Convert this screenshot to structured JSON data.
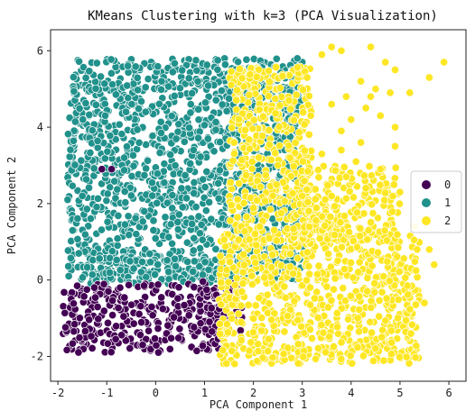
{
  "chart_data": {
    "type": "scatter",
    "title": "KMeans Clustering with k=3 (PCA Visualization)",
    "xlabel": "PCA Component 1",
    "ylabel": "PCA Component 2",
    "xlim": [
      -2.15,
      6.35
    ],
    "ylim": [
      -2.65,
      6.55
    ],
    "xticks": [
      -2,
      -1,
      0,
      1,
      2,
      3,
      4,
      5,
      6
    ],
    "yticks": [
      -2,
      0,
      2,
      4,
      6
    ],
    "grid": false,
    "legend": {
      "placement": "center-right"
    },
    "series": [
      {
        "name": "0",
        "color": "#440154",
        "regions": [
          {
            "x": [
              -1.9,
              1.3
            ],
            "y": [
              -1.9,
              -0.1
            ]
          },
          {
            "x": [
              0.9,
              1.8
            ],
            "y": [
              -1.4,
              0.0
            ]
          }
        ],
        "points": [
          [
            -1.1,
            2.9
          ],
          [
            -0.9,
            2.9
          ],
          [
            1.5,
            -0.3
          ],
          [
            1.6,
            -0.5
          ],
          [
            1.4,
            -0.9
          ],
          [
            1.7,
            -1.1
          ]
        ]
      },
      {
        "name": "1",
        "color": "#21918c",
        "regions": [
          {
            "x": [
              -1.8,
              3.0
            ],
            "y": [
              0.0,
              5.8
            ]
          },
          {
            "x": [
              -1.5,
              1.4
            ],
            "y": [
              -0.1,
              0.6
            ]
          }
        ],
        "points": [
          [
            3.0,
            5.7
          ],
          [
            2.9,
            5.8
          ],
          [
            2.8,
            5.5
          ],
          [
            -1.8,
            2.1
          ],
          [
            -1.7,
            1.3
          ]
        ]
      },
      {
        "name": "2",
        "color": "#fde725",
        "regions": [
          {
            "x": [
              1.3,
              5.4
            ],
            "y": [
              -2.2,
              1.2
            ]
          },
          {
            "x": [
              1.5,
              3.2
            ],
            "y": [
              1.0,
              5.6
            ]
          },
          {
            "x": [
              3.0,
              5.0
            ],
            "y": [
              1.0,
              3.0
            ]
          }
        ],
        "points": [
          [
            3.6,
            6.1
          ],
          [
            3.8,
            6.0
          ],
          [
            4.4,
            6.1
          ],
          [
            4.7,
            5.7
          ],
          [
            5.9,
            5.7
          ],
          [
            5.6,
            5.3
          ],
          [
            4.2,
            5.2
          ],
          [
            4.5,
            5.0
          ],
          [
            3.9,
            4.8
          ],
          [
            4.8,
            4.9
          ],
          [
            4.3,
            4.5
          ],
          [
            3.6,
            4.6
          ],
          [
            4.0,
            4.2
          ],
          [
            4.6,
            4.3
          ],
          [
            4.9,
            4.0
          ],
          [
            3.8,
            3.9
          ],
          [
            4.2,
            3.6
          ],
          [
            4.9,
            3.5
          ],
          [
            3.4,
            3.3
          ],
          [
            4.1,
            3.1
          ],
          [
            4.6,
            2.9
          ],
          [
            3.9,
            2.7
          ],
          [
            4.3,
            2.4
          ],
          [
            3.6,
            2.2
          ],
          [
            5.0,
            2.3
          ],
          [
            5.3,
            1.4
          ],
          [
            5.6,
            0.8
          ],
          [
            5.7,
            0.4
          ],
          [
            5.5,
            -0.6
          ],
          [
            3.8,
            3.4
          ],
          [
            3.1,
            5.3
          ],
          [
            3.4,
            5.9
          ],
          [
            4.9,
            5.5
          ],
          [
            5.2,
            4.9
          ],
          [
            4.4,
            4.8
          ]
        ]
      }
    ]
  }
}
